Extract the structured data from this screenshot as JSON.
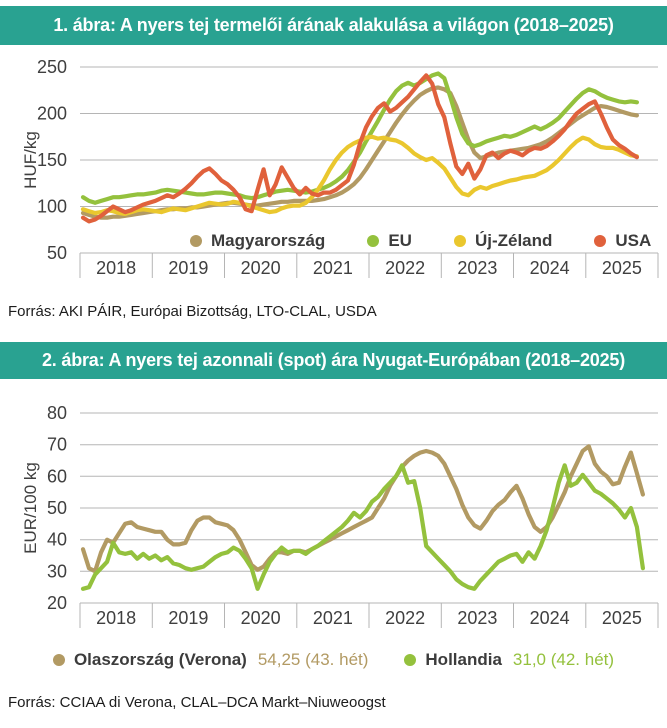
{
  "figure1": {
    "title": "1. ábra: A nyers tej termelői árának alakulása a világon (2018–2025)",
    "source": "Forrás: AKI PÁIR, Európai Bizottság, LTO-CLAL, USDA"
  },
  "figure2": {
    "title": "2. ábra: A nyers tej azonnali (spot) ára Nyugat-Európában (2018–2025)",
    "source": "Forrás: CCIAA di Verona, CLAL–DCA Markt–Niuweoogst"
  },
  "colors": {
    "header_bg": "#29a291",
    "header_text": "#ffffff",
    "grid": "#b5b5b5",
    "axis_text": "#3f3f3f"
  },
  "chart_data": [
    {
      "type": "line",
      "title": "A nyers tej termelői árának alakulása a világon (2018–2025)",
      "xlabel": "",
      "ylabel": "HUF/kg",
      "ylim": [
        50,
        250
      ],
      "yticks": [
        50,
        100,
        150,
        200,
        250
      ],
      "years": [
        "2018",
        "2019",
        "2020",
        "2021",
        "2022",
        "2023",
        "2024",
        "2025"
      ],
      "points_per_year": 12,
      "grid": "horizontal",
      "legend_position": "inside-bottom",
      "series": [
        {
          "name": "Magyarország",
          "color": "#b29a63",
          "values": [
            93,
            91,
            89,
            88,
            88,
            89,
            89,
            90,
            91,
            92,
            93,
            94,
            95,
            96,
            97,
            97,
            98,
            98,
            99,
            99,
            100,
            101,
            102,
            103,
            104,
            104,
            103,
            102,
            101,
            101,
            102,
            103,
            104,
            105,
            105,
            106,
            106,
            106,
            106,
            107,
            108,
            110,
            112,
            115,
            119,
            124,
            131,
            140,
            150,
            160,
            170,
            180,
            190,
            199,
            207,
            214,
            220,
            224,
            227,
            228,
            226,
            222,
            208,
            190,
            172,
            158,
            152,
            154,
            156,
            158,
            159,
            160,
            161,
            162,
            163,
            165,
            167,
            170,
            174,
            179,
            184,
            189,
            194,
            198,
            202,
            206,
            208,
            207,
            205,
            203,
            201,
            199,
            198
          ]
        },
        {
          "name": "EU",
          "color": "#94c13d",
          "values": [
            110,
            106,
            104,
            106,
            108,
            110,
            110,
            111,
            112,
            113,
            113,
            114,
            115,
            117,
            118,
            117,
            116,
            115,
            114,
            113,
            113,
            114,
            115,
            115,
            114,
            113,
            112,
            110,
            109,
            110,
            112,
            114,
            116,
            117,
            118,
            117,
            116,
            115,
            116,
            118,
            120,
            123,
            127,
            132,
            139,
            148,
            158,
            170,
            181,
            192,
            204,
            215,
            224,
            230,
            233,
            230,
            233,
            237,
            241,
            243,
            238,
            218,
            196,
            178,
            168,
            165,
            167,
            170,
            172,
            174,
            176,
            175,
            177,
            180,
            183,
            186,
            183,
            186,
            190,
            195,
            202,
            209,
            216,
            222,
            226,
            224,
            220,
            217,
            215,
            213,
            212,
            213,
            212
          ]
        },
        {
          "name": "Új-Zéland",
          "color": "#eac72e",
          "values": [
            97,
            95,
            93,
            94,
            96,
            95,
            93,
            92,
            94,
            96,
            97,
            96,
            95,
            94,
            96,
            98,
            97,
            96,
            98,
            100,
            102,
            104,
            103,
            102,
            103,
            105,
            104,
            102,
            100,
            98,
            96,
            94,
            95,
            98,
            100,
            101,
            101,
            104,
            110,
            118,
            128,
            140,
            150,
            158,
            164,
            168,
            171,
            174,
            175,
            173,
            174,
            172,
            171,
            168,
            163,
            157,
            153,
            150,
            152,
            147,
            141,
            131,
            121,
            114,
            112,
            118,
            121,
            119,
            122,
            124,
            126,
            128,
            129,
            131,
            132,
            133,
            136,
            139,
            144,
            150,
            157,
            164,
            170,
            174,
            172,
            167,
            164,
            163,
            163,
            161,
            158,
            155,
            154
          ]
        },
        {
          "name": "USA",
          "color": "#e0613c",
          "values": [
            88,
            84,
            86,
            90,
            95,
            100,
            97,
            94,
            96,
            99,
            102,
            104,
            106,
            109,
            112,
            110,
            114,
            119,
            125,
            132,
            138,
            141,
            135,
            128,
            124,
            118,
            110,
            97,
            95,
            118,
            140,
            112,
            124,
            142,
            131,
            120,
            113,
            120,
            114,
            112,
            115,
            115,
            118,
            123,
            128,
            145,
            168,
            185,
            197,
            206,
            211,
            202,
            206,
            212,
            218,
            226,
            234,
            241,
            232,
            210,
            196,
            168,
            143,
            135,
            146,
            130,
            140,
            155,
            158,
            152,
            157,
            160,
            158,
            155,
            160,
            163,
            162,
            165,
            170,
            176,
            183,
            192,
            200,
            205,
            210,
            213,
            200,
            185,
            172,
            166,
            162,
            157,
            153
          ]
        }
      ]
    },
    {
      "type": "line",
      "title": "A nyers tej azonnali (spot) ára Nyugat-Európában (2018–2025)",
      "xlabel": "",
      "ylabel": "EUR/100 kg",
      "ylim": [
        20,
        80
      ],
      "yticks": [
        20,
        30,
        40,
        50,
        60,
        70,
        80
      ],
      "years": [
        "2018",
        "2019",
        "2020",
        "2021",
        "2022",
        "2023",
        "2024",
        "2025"
      ],
      "points_per_year": 12,
      "grid": "horizontal",
      "legend_position": "below",
      "series": [
        {
          "name": "Olaszország (Verona)",
          "color": "#b29a63",
          "latest_text": "54,25 (43. hét)",
          "values": [
            37,
            31,
            30,
            36,
            40,
            39,
            42,
            45,
            45.5,
            44,
            43.5,
            43,
            42.5,
            42.5,
            40,
            38.5,
            38.5,
            39,
            43,
            46,
            47,
            47,
            45.5,
            45,
            44.5,
            43,
            40,
            36,
            32,
            30.5,
            31.5,
            34,
            36,
            36,
            35.5,
            36.5,
            36.5,
            36,
            37,
            38,
            39,
            40,
            41,
            42,
            43,
            44,
            45,
            46,
            47,
            50,
            53,
            57,
            60,
            63,
            65,
            66.5,
            67.5,
            68,
            67.5,
            66.5,
            64,
            60,
            56,
            51,
            47,
            44.5,
            43.5,
            46,
            49,
            51,
            52.5,
            55,
            57,
            53,
            48,
            44,
            42.5,
            44,
            47,
            51,
            55,
            60,
            64,
            68,
            69.5,
            64,
            61.5,
            60,
            57.5,
            58,
            63,
            67.5,
            61,
            54.25
          ]
        },
        {
          "name": "Hollandia",
          "color": "#94c13d",
          "latest_text": "31,0 (42. hét)",
          "values": [
            24.5,
            25,
            29,
            31,
            33,
            39,
            36,
            35.5,
            36,
            34,
            35.5,
            34,
            35,
            33.5,
            34.5,
            32.5,
            32,
            31,
            30.5,
            31,
            31.5,
            33,
            34.5,
            35.5,
            36,
            37.5,
            36.5,
            34,
            31,
            24.5,
            29,
            33,
            35.5,
            37.5,
            36,
            36.5,
            36.5,
            35.5,
            37,
            38,
            39.5,
            41,
            42.5,
            44,
            46,
            48.5,
            47,
            49,
            52,
            53.5,
            56,
            58,
            60,
            63.5,
            58,
            58.5,
            50,
            38,
            36,
            34,
            32,
            30,
            27.5,
            26,
            25,
            24.5,
            27,
            29,
            31,
            33,
            34,
            35,
            35.5,
            33,
            36,
            34,
            38,
            43,
            50,
            58,
            63.5,
            57,
            58,
            60.5,
            58,
            55.5,
            54.5,
            53,
            51.5,
            49.5,
            47,
            50,
            44,
            31
          ]
        }
      ]
    }
  ]
}
